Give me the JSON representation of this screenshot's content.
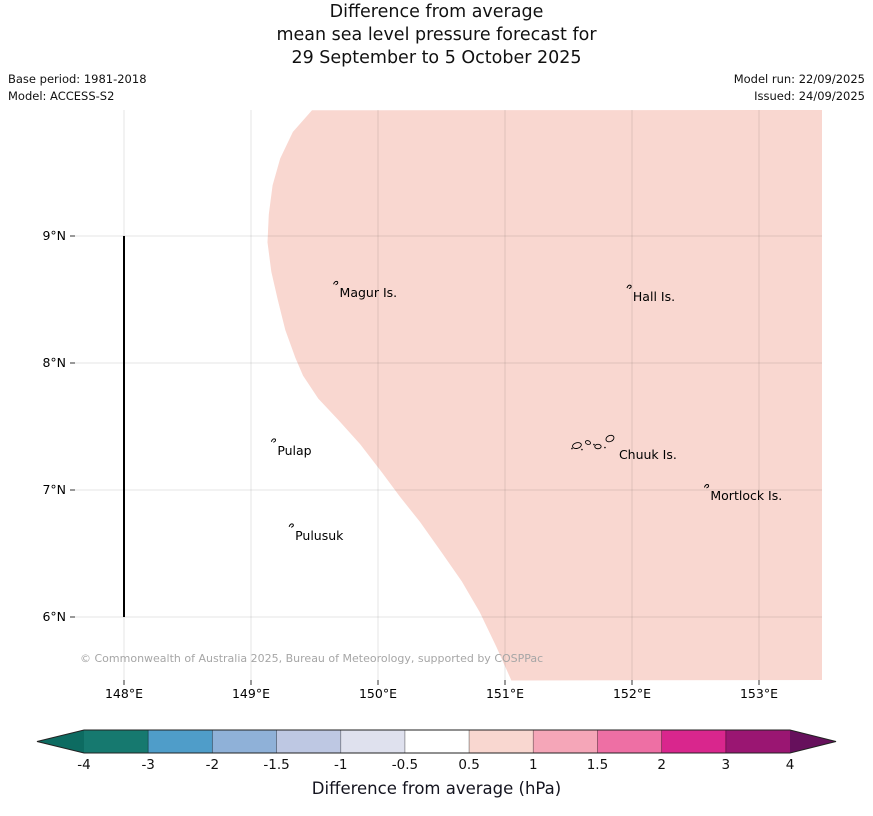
{
  "title": {
    "line1": "Difference from average",
    "line2": "mean sea level pressure forecast for",
    "line3": "29 September to 5 October 2025"
  },
  "meta": {
    "base_period": "Base period: 1981-2018",
    "model": "Model: ACCESS-S2",
    "model_run": "Model run: 22/09/2025",
    "issued": "Issued: 24/09/2025"
  },
  "map": {
    "x_ticks": [
      {
        "label": "148°E",
        "lon": 148
      },
      {
        "label": "149°E",
        "lon": 149
      },
      {
        "label": "150°E",
        "lon": 150
      },
      {
        "label": "151°E",
        "lon": 151
      },
      {
        "label": "152°E",
        "lon": 152
      },
      {
        "label": "153°E",
        "lon": 153
      }
    ],
    "y_ticks": [
      {
        "label": "9°N",
        "lat": 9
      },
      {
        "label": "8°N",
        "lat": 8
      },
      {
        "label": "7°N",
        "lat": 7
      },
      {
        "label": "6°N",
        "lat": 6
      }
    ],
    "meridian_line": {
      "lon": 148,
      "lat_from": 6,
      "lat_to": 9
    },
    "islands": [
      {
        "name": "magur-is",
        "label": "Magur Is.",
        "lon": 149.65,
        "lat": 8.62,
        "mark": "islet"
      },
      {
        "name": "hall-is",
        "label": "Hall Is.",
        "lon": 151.96,
        "lat": 8.59,
        "mark": "islet"
      },
      {
        "name": "pulap",
        "label": "Pulap",
        "lon": 149.16,
        "lat": 7.38,
        "mark": "islet"
      },
      {
        "name": "chuuk-is",
        "label": "Chuuk Is.",
        "lon": 151.85,
        "lat": 7.35,
        "mark": "atoll-cluster"
      },
      {
        "name": "mortlock-is",
        "label": "Mortlock Is.",
        "lon": 152.57,
        "lat": 7.02,
        "mark": "islet"
      },
      {
        "name": "pulusuk",
        "label": "Pulusuk",
        "lon": 149.3,
        "lat": 6.71,
        "mark": "islet"
      }
    ],
    "copyright": "© Commonwealth of Australia 2025, Bureau of Meteorology, supported by COSPPac"
  },
  "colorbar": {
    "label": "Difference from average (hPa)",
    "ticks": [
      "-4",
      "-3",
      "-2",
      "-1.5",
      "-1",
      "-0.5",
      "0.5",
      "1",
      "1.5",
      "2",
      "3",
      "4"
    ],
    "segments": [
      "#16796f",
      "#4f9dc9",
      "#8fb1d8",
      "#bec8e3",
      "#dfe1ee",
      "#ffffff",
      "#f9d7d0",
      "#f5a6b8",
      "#ee6fa4",
      "#d9268d",
      "#9a1672"
    ],
    "arrow_left": "#0d6b61",
    "arrow_right": "#66105c"
  },
  "chart_data": {
    "type": "filled_contour_map",
    "title": "Difference from average mean sea level pressure forecast for 29 September to 5 October 2025",
    "variable": "Mean sea level pressure difference from average (hPa)",
    "base_period": "1981-2018",
    "model": "ACCESS-S2",
    "model_run": "22/09/2025",
    "issued": "24/09/2025",
    "lon_ticks": [
      148,
      149,
      150,
      151,
      152,
      153
    ],
    "lat_ticks": [
      9,
      8,
      7,
      6
    ],
    "map_extent": {
      "lon": [
        147.61,
        153.5
      ],
      "lat": [
        5.5,
        9.99
      ]
    },
    "grid": true,
    "legend_position": "bottom-colorbar",
    "colorbar_tick_values": [
      -4,
      -3,
      -2,
      -1.5,
      -1,
      -0.5,
      0.5,
      1,
      1.5,
      2,
      3,
      4
    ],
    "regions": [
      {
        "range_hpa": [
          0.5,
          1.0
        ],
        "color": "#f9d7d0",
        "area": "eastern and majority of domain, boundary curving from ~149.5E at north edge down to ~151E at south edge"
      },
      {
        "range_hpa": [
          -0.5,
          0.5
        ],
        "color": "#ffffff",
        "area": "western portion of domain"
      }
    ],
    "shaded_region_boundary_lonlat": [
      [
        149.48,
        9.99
      ],
      [
        149.33,
        9.82
      ],
      [
        149.23,
        9.61
      ],
      [
        149.17,
        9.4
      ],
      [
        149.14,
        9.17
      ],
      [
        149.13,
        8.95
      ],
      [
        149.16,
        8.72
      ],
      [
        149.21,
        8.5
      ],
      [
        149.27,
        8.26
      ],
      [
        149.35,
        8.04
      ],
      [
        149.41,
        7.9
      ],
      [
        149.53,
        7.72
      ],
      [
        149.69,
        7.55
      ],
      [
        149.86,
        7.36
      ],
      [
        150.03,
        7.14
      ],
      [
        150.17,
        6.95
      ],
      [
        150.33,
        6.75
      ],
      [
        150.5,
        6.51
      ],
      [
        150.66,
        6.28
      ],
      [
        150.8,
        6.04
      ],
      [
        150.93,
        5.77
      ],
      [
        151.05,
        5.5
      ]
    ]
  }
}
